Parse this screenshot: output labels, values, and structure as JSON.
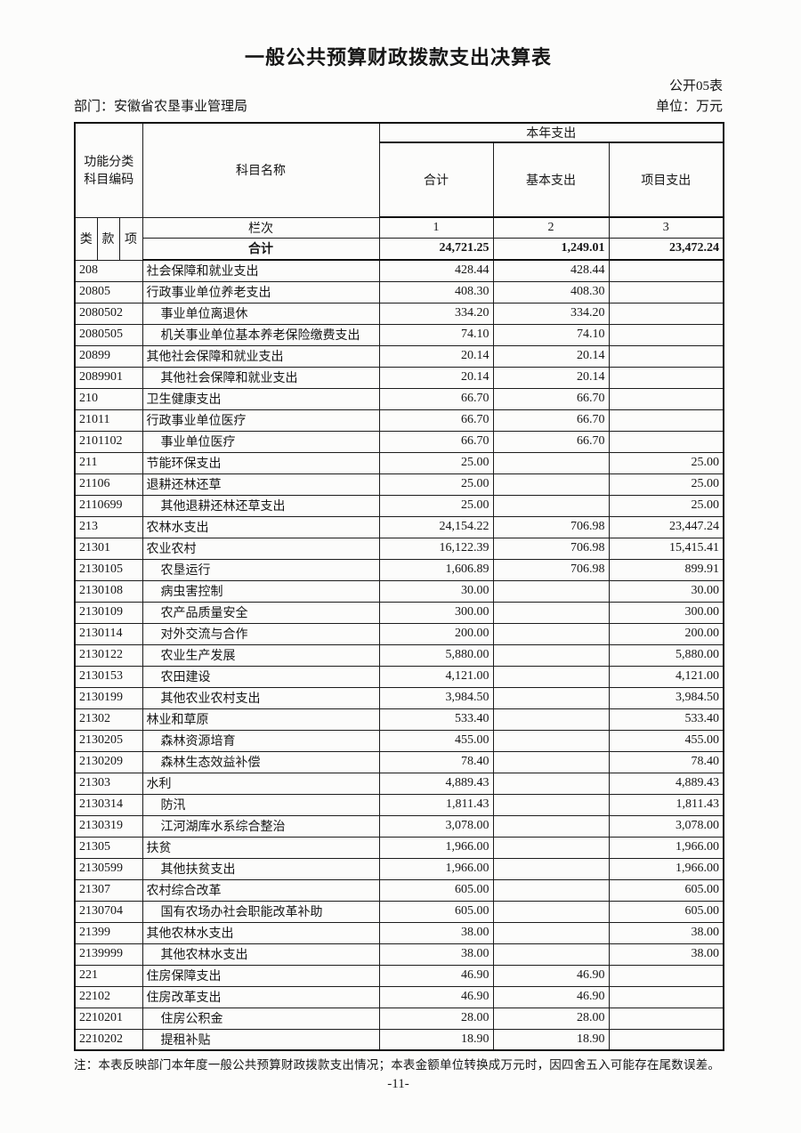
{
  "page": {
    "title": "一般公共预算财政拨款支出决算表",
    "form_code": "公开05表",
    "department": "部门：安徽省农垦事业管理局",
    "unit": "单位：万元",
    "footnote": "注：本表反映部门本年度一般公共预算财政拨款支出情况；本表金额单位转换成万元时，因四舍五入可能存在尾数误差。",
    "page_number": "-11-"
  },
  "colors": {
    "ink": "#161616",
    "paper": "#fcfcfb",
    "border": "#111111"
  },
  "table": {
    "header": {
      "code_group": "功能分类科目编码",
      "subject_name": "科目名称",
      "year_expenditure": "本年支出",
      "col_total": "合计",
      "col_basic": "基本支出",
      "col_project": "项目支出",
      "code_sub": [
        "类",
        "款",
        "项"
      ],
      "lanci_label": "栏次",
      "lanci_numbers": [
        "1",
        "2",
        "3"
      ],
      "total_label": "合计"
    },
    "totals": {
      "total": "24,721.25",
      "basic": "1,249.01",
      "project": "23,472.24"
    },
    "rows": [
      {
        "code": "208",
        "name": "社会保障和就业支出",
        "indent": 0,
        "total": "428.44",
        "basic": "428.44",
        "project": ""
      },
      {
        "code": "20805",
        "name": "行政事业单位养老支出",
        "indent": 0,
        "total": "408.30",
        "basic": "408.30",
        "project": ""
      },
      {
        "code": "2080502",
        "name": "事业单位离退休",
        "indent": 1,
        "total": "334.20",
        "basic": "334.20",
        "project": ""
      },
      {
        "code": "2080505",
        "name": "机关事业单位基本养老保险缴费支出",
        "indent": 1,
        "total": "74.10",
        "basic": "74.10",
        "project": ""
      },
      {
        "code": "20899",
        "name": "其他社会保障和就业支出",
        "indent": 0,
        "total": "20.14",
        "basic": "20.14",
        "project": ""
      },
      {
        "code": "2089901",
        "name": "其他社会保障和就业支出",
        "indent": 1,
        "total": "20.14",
        "basic": "20.14",
        "project": ""
      },
      {
        "code": "210",
        "name": "卫生健康支出",
        "indent": 0,
        "total": "66.70",
        "basic": "66.70",
        "project": ""
      },
      {
        "code": "21011",
        "name": "行政事业单位医疗",
        "indent": 0,
        "total": "66.70",
        "basic": "66.70",
        "project": ""
      },
      {
        "code": "2101102",
        "name": "事业单位医疗",
        "indent": 1,
        "total": "66.70",
        "basic": "66.70",
        "project": ""
      },
      {
        "code": "211",
        "name": "节能环保支出",
        "indent": 0,
        "total": "25.00",
        "basic": "",
        "project": "25.00"
      },
      {
        "code": "21106",
        "name": "退耕还林还草",
        "indent": 0,
        "total": "25.00",
        "basic": "",
        "project": "25.00"
      },
      {
        "code": "2110699",
        "name": "其他退耕还林还草支出",
        "indent": 1,
        "total": "25.00",
        "basic": "",
        "project": "25.00"
      },
      {
        "code": "213",
        "name": "农林水支出",
        "indent": 0,
        "total": "24,154.22",
        "basic": "706.98",
        "project": "23,447.24"
      },
      {
        "code": "21301",
        "name": "农业农村",
        "indent": 0,
        "total": "16,122.39",
        "basic": "706.98",
        "project": "15,415.41"
      },
      {
        "code": "2130105",
        "name": "农垦运行",
        "indent": 1,
        "total": "1,606.89",
        "basic": "706.98",
        "project": "899.91"
      },
      {
        "code": "2130108",
        "name": "病虫害控制",
        "indent": 1,
        "total": "30.00",
        "basic": "",
        "project": "30.00"
      },
      {
        "code": "2130109",
        "name": "农产品质量安全",
        "indent": 1,
        "total": "300.00",
        "basic": "",
        "project": "300.00"
      },
      {
        "code": "2130114",
        "name": "对外交流与合作",
        "indent": 1,
        "total": "200.00",
        "basic": "",
        "project": "200.00"
      },
      {
        "code": "2130122",
        "name": "农业生产发展",
        "indent": 1,
        "total": "5,880.00",
        "basic": "",
        "project": "5,880.00"
      },
      {
        "code": "2130153",
        "name": "农田建设",
        "indent": 1,
        "total": "4,121.00",
        "basic": "",
        "project": "4,121.00"
      },
      {
        "code": "2130199",
        "name": "其他农业农村支出",
        "indent": 1,
        "total": "3,984.50",
        "basic": "",
        "project": "3,984.50"
      },
      {
        "code": "21302",
        "name": "林业和草原",
        "indent": 0,
        "total": "533.40",
        "basic": "",
        "project": "533.40"
      },
      {
        "code": "2130205",
        "name": "森林资源培育",
        "indent": 1,
        "total": "455.00",
        "basic": "",
        "project": "455.00"
      },
      {
        "code": "2130209",
        "name": "森林生态效益补偿",
        "indent": 1,
        "total": "78.40",
        "basic": "",
        "project": "78.40"
      },
      {
        "code": "21303",
        "name": "水利",
        "indent": 0,
        "total": "4,889.43",
        "basic": "",
        "project": "4,889.43"
      },
      {
        "code": "2130314",
        "name": "防汛",
        "indent": 1,
        "total": "1,811.43",
        "basic": "",
        "project": "1,811.43"
      },
      {
        "code": "2130319",
        "name": "江河湖库水系综合整治",
        "indent": 1,
        "total": "3,078.00",
        "basic": "",
        "project": "3,078.00"
      },
      {
        "code": "21305",
        "name": "扶贫",
        "indent": 0,
        "total": "1,966.00",
        "basic": "",
        "project": "1,966.00"
      },
      {
        "code": "2130599",
        "name": "其他扶贫支出",
        "indent": 1,
        "total": "1,966.00",
        "basic": "",
        "project": "1,966.00"
      },
      {
        "code": "21307",
        "name": "农村综合改革",
        "indent": 0,
        "total": "605.00",
        "basic": "",
        "project": "605.00"
      },
      {
        "code": "2130704",
        "name": "国有农场办社会职能改革补助",
        "indent": 1,
        "total": "605.00",
        "basic": "",
        "project": "605.00"
      },
      {
        "code": "21399",
        "name": "其他农林水支出",
        "indent": 0,
        "total": "38.00",
        "basic": "",
        "project": "38.00"
      },
      {
        "code": "2139999",
        "name": "其他农林水支出",
        "indent": 1,
        "total": "38.00",
        "basic": "",
        "project": "38.00"
      },
      {
        "code": "221",
        "name": "住房保障支出",
        "indent": 0,
        "total": "46.90",
        "basic": "46.90",
        "project": ""
      },
      {
        "code": "22102",
        "name": "住房改革支出",
        "indent": 0,
        "total": "46.90",
        "basic": "46.90",
        "project": ""
      },
      {
        "code": "2210201",
        "name": "住房公积金",
        "indent": 1,
        "total": "28.00",
        "basic": "28.00",
        "project": ""
      },
      {
        "code": "2210202",
        "name": "提租补贴",
        "indent": 1,
        "total": "18.90",
        "basic": "18.90",
        "project": ""
      }
    ]
  }
}
